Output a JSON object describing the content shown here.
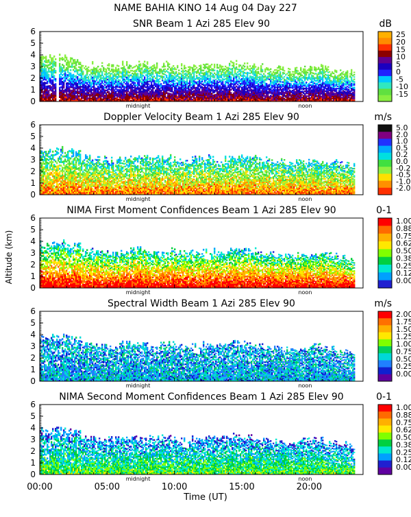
{
  "header": {
    "line1": "NAME BAHIA KINO   14 Aug 04 Day 227"
  },
  "shared_axes": {
    "xlabel": "Time (UT)",
    "ylabel": "Altitude (km)",
    "x_ticks": [
      "00:00",
      "05:00",
      "10:00",
      "15:00",
      "20:00"
    ],
    "x_tick_hours": [
      0,
      5,
      10,
      15,
      20
    ],
    "xlim": [
      0,
      24
    ],
    "ylim": [
      0,
      6
    ],
    "y_ticks": [
      "0",
      "1",
      "2",
      "3",
      "4",
      "5",
      "6"
    ],
    "midnight_label": "midnight",
    "noon_label": "noon",
    "midnight_hour": 7.3,
    "noon_hour": 19.7
  },
  "chart_data": [
    {
      "type": "heatmap",
      "title": "SNR Beam 1 Azi 285 Elev 90",
      "unit": "dB",
      "colorbar_ticks": [
        "25",
        "20",
        "15",
        "10",
        "5",
        "0",
        "-5",
        "-10",
        "-15"
      ],
      "colors": [
        "#ffb000",
        "#ff8c00",
        "#ff3000",
        "#8b0000",
        "#600090",
        "#1a00c0",
        "#2020ff",
        "#00c8ff",
        "#30e8c0",
        "#60e040",
        "#88ee40"
      ],
      "echo_top_km": [
        3.8,
        3.9,
        3.7,
        3.2,
        3.1,
        3.0,
        3.2,
        3.3,
        3.1,
        3.2,
        3.0,
        3.1,
        3.2,
        3.1,
        3.3,
        3.2,
        3.0,
        2.9,
        2.8,
        2.9,
        3.0,
        2.8,
        2.6,
        2.5
      ]
    },
    {
      "type": "heatmap",
      "title": "Doppler Velocity Beam 1 Azi 285 Elev 90",
      "unit": "m/s",
      "colorbar_ticks": [
        "5.0",
        "2.0",
        "1.0",
        "0.5",
        "0.2",
        "0.0",
        "-0.2",
        "-0.5",
        "-1.0",
        "-2.0"
      ],
      "colors": [
        "#101010",
        "#800080",
        "#2030ff",
        "#00a8ff",
        "#00e0e0",
        "#40e040",
        "#90f040",
        "#ffe000",
        "#ff9000",
        "#ff3000"
      ],
      "echo_top_km": [
        3.8,
        3.9,
        3.7,
        3.2,
        3.1,
        3.0,
        3.2,
        3.3,
        3.1,
        3.2,
        3.0,
        3.1,
        3.2,
        3.1,
        3.3,
        3.2,
        3.0,
        2.9,
        2.8,
        2.9,
        3.0,
        2.8,
        2.6,
        2.5
      ]
    },
    {
      "type": "heatmap",
      "title": "NIMA First Moment Confidences Beam 1 Azi 285 Elev 90",
      "unit": "0-1",
      "colorbar_ticks": [
        "1.00",
        "0.88",
        "0.75",
        "0.62",
        "0.50",
        "0.38",
        "0.25",
        "0.12",
        "0.00"
      ],
      "colors": [
        "#ff0000",
        "#ff6a00",
        "#ffb000",
        "#ffe800",
        "#80ff00",
        "#00d040",
        "#00e8d0",
        "#00a0ff",
        "#2020d0"
      ],
      "echo_top_km": [
        3.8,
        3.9,
        3.7,
        3.2,
        3.1,
        3.0,
        3.2,
        3.3,
        3.1,
        3.2,
        3.0,
        3.1,
        3.2,
        3.1,
        3.3,
        3.2,
        3.0,
        2.9,
        2.8,
        2.9,
        3.0,
        2.8,
        2.6,
        2.5
      ]
    },
    {
      "type": "heatmap",
      "title": "Spectral Width Beam 1 Azi 285 Elev 90",
      "unit": "m/s",
      "colorbar_ticks": [
        "2.00",
        "1.75",
        "1.50",
        "1.25",
        "1.00",
        "0.75",
        "0.50",
        "0.25",
        "0.00"
      ],
      "colors": [
        "#ff0000",
        "#ff7000",
        "#ffb000",
        "#ffe800",
        "#80ff00",
        "#00d060",
        "#00d8d8",
        "#2080ff",
        "#1020d0",
        "#6000a0"
      ],
      "echo_top_km": [
        3.8,
        3.9,
        3.7,
        3.2,
        3.1,
        3.0,
        3.2,
        3.3,
        3.1,
        3.2,
        3.0,
        3.1,
        3.2,
        3.1,
        3.3,
        3.2,
        3.0,
        2.9,
        2.8,
        2.9,
        3.0,
        2.8,
        2.6,
        2.5
      ]
    },
    {
      "type": "heatmap",
      "title": "NIMA Second Moment Confidences Beam 1 Azi 285 Elev 90",
      "unit": "0-1",
      "colorbar_ticks": [
        "1.00",
        "0.88",
        "0.75",
        "0.62",
        "0.50",
        "0.38",
        "0.25",
        "0.12",
        "0.00"
      ],
      "colors": [
        "#ff0000",
        "#ff6a00",
        "#ffb000",
        "#ffe800",
        "#80ff00",
        "#00d040",
        "#00e8d0",
        "#00a0ff",
        "#2020d0",
        "#6000a0"
      ],
      "echo_top_km": [
        3.8,
        3.9,
        3.7,
        3.2,
        3.1,
        3.0,
        3.2,
        3.3,
        3.1,
        3.2,
        3.0,
        3.1,
        3.2,
        3.1,
        3.3,
        3.2,
        3.0,
        2.9,
        2.8,
        2.9,
        3.0,
        2.8,
        2.6,
        2.5
      ]
    }
  ]
}
